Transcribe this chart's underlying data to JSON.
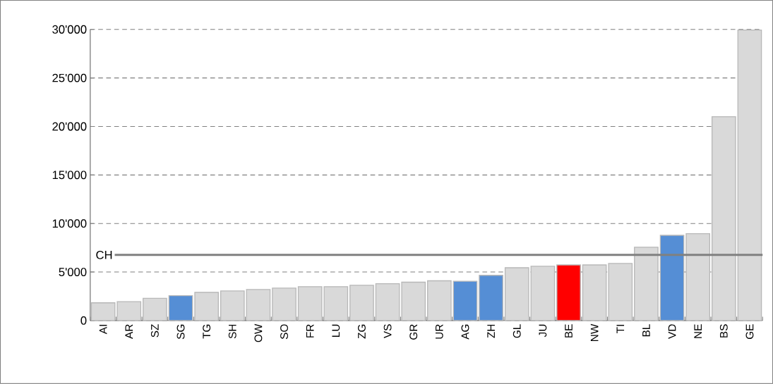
{
  "chart_data": {
    "type": "bar",
    "categories": [
      "AI",
      "AR",
      "SZ",
      "SG",
      "TG",
      "SH",
      "OW",
      "SO",
      "FR",
      "LU",
      "ZG",
      "VS",
      "GR",
      "UR",
      "AG",
      "ZH",
      "GL",
      "JU",
      "BE",
      "NW",
      "TI",
      "BL",
      "VD",
      "NE",
      "BS",
      "GE"
    ],
    "values": [
      1830,
      1950,
      2290,
      2560,
      2900,
      3050,
      3200,
      3340,
      3490,
      3490,
      3640,
      3800,
      3950,
      4100,
      4050,
      4660,
      5440,
      5590,
      5730,
      5730,
      5880,
      7560,
      8780,
      8950,
      21010,
      29940
    ],
    "colors": [
      "#d9d9d9",
      "#d9d9d9",
      "#d9d9d9",
      "#558ed5",
      "#d9d9d9",
      "#d9d9d9",
      "#d9d9d9",
      "#d9d9d9",
      "#d9d9d9",
      "#d9d9d9",
      "#d9d9d9",
      "#d9d9d9",
      "#d9d9d9",
      "#d9d9d9",
      "#558ed5",
      "#558ed5",
      "#d9d9d9",
      "#d9d9d9",
      "#ff0000",
      "#d9d9d9",
      "#d9d9d9",
      "#d9d9d9",
      "#558ed5",
      "#d9d9d9",
      "#d9d9d9",
      "#d9d9d9"
    ],
    "ylim": [
      0,
      30000
    ],
    "yticks": [
      0,
      {
        "value": 5000,
        "label": "5'000"
      },
      {
        "value": 10000,
        "label": "10'000"
      },
      {
        "value": 15000,
        "label": "15'000"
      },
      {
        "value": 20000,
        "label": "20'000"
      },
      {
        "value": 25000,
        "label": "25'000"
      },
      {
        "value": 30000,
        "label": "30'000"
      }
    ],
    "grid": "y",
    "ref_lines": [
      {
        "axis": "y",
        "value": 6760,
        "label": "CH",
        "color": "#808080"
      }
    ]
  }
}
